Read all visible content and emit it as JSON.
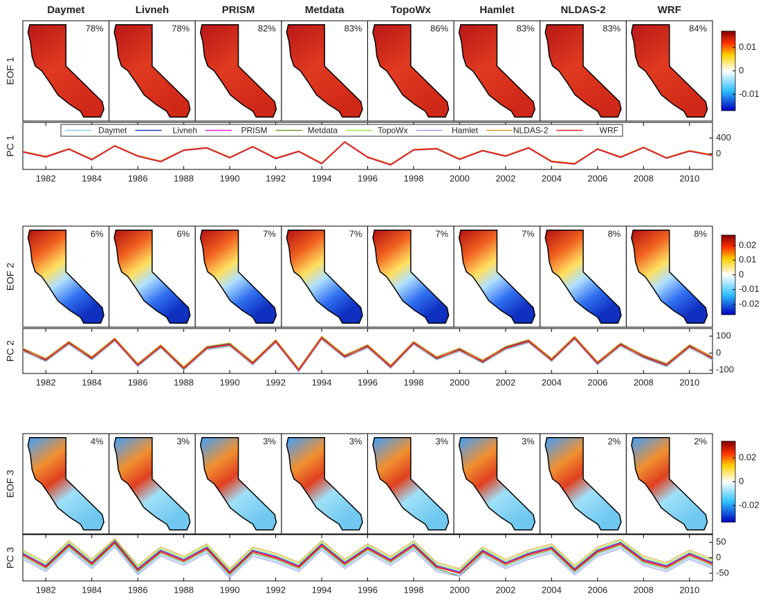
{
  "chart_data": [
    {
      "type": "map",
      "categories": [
        "Daymet",
        "Livneh",
        "PRISM",
        "Metdata",
        "TopoWx",
        "Hamlet",
        "NLDAS-2",
        "WRF"
      ],
      "ylabel": "EOF 1",
      "values": [
        78,
        78,
        82,
        83,
        86,
        83,
        83,
        84
      ],
      "value_labels": [
        "78%",
        "78%",
        "82%",
        "83%",
        "86%",
        "83%",
        "83%",
        "84%"
      ],
      "clim": [
        -0.017,
        0.017
      ],
      "cticks": [
        -0.01,
        0,
        0.01
      ]
    },
    {
      "type": "line",
      "ylabel": "PC 1",
      "legend": "top",
      "x": [
        1981,
        1982,
        1983,
        1984,
        1985,
        1986,
        1987,
        1988,
        1989,
        1990,
        1991,
        1992,
        1993,
        1994,
        1995,
        1996,
        1997,
        1998,
        1999,
        2000,
        2001,
        2002,
        2003,
        2004,
        2005,
        2006,
        2007,
        2008,
        2009,
        2010,
        2011
      ],
      "xlim": [
        1981,
        2011
      ],
      "xticks": [
        1982,
        1984,
        1986,
        1988,
        1990,
        1992,
        1994,
        1996,
        1998,
        2000,
        2002,
        2004,
        2006,
        2008,
        2010
      ],
      "ylim": [
        -400,
        800
      ],
      "yticks": [
        0,
        400
      ],
      "series": [
        {
          "name": "Daymet",
          "color": "#87ceeb",
          "values": [
            40,
            -70,
            110,
            -140,
            190,
            -50,
            -190,
            80,
            140,
            -90,
            170,
            -110,
            50,
            -240,
            290,
            -80,
            -270,
            90,
            120,
            -130,
            70,
            -50,
            140,
            -190,
            -250,
            110,
            -80,
            150,
            -100,
            60,
            -30
          ]
        },
        {
          "name": "Livneh",
          "color": "#1f3fbf",
          "values": [
            55,
            -85,
            125,
            -160,
            205,
            -65,
            -210,
            95,
            155,
            -105,
            185,
            -125,
            65,
            -255,
            305,
            -95,
            -285,
            105,
            135,
            -145,
            85,
            -65,
            155,
            -205,
            -265,
            125,
            -95,
            165,
            -115,
            75,
            -45
          ]
        },
        {
          "name": "PRISM",
          "color": "#e020e0",
          "values": [
            45,
            -75,
            115,
            -145,
            195,
            -55,
            -195,
            85,
            145,
            -95,
            175,
            -115,
            55,
            -245,
            295,
            -85,
            -275,
            95,
            125,
            -135,
            75,
            -55,
            145,
            -195,
            -255,
            115,
            -85,
            155,
            -105,
            65,
            -35
          ]
        },
        {
          "name": "Metdata",
          "color": "#6b9b30",
          "values": [
            60,
            -70,
            130,
            -140,
            210,
            -50,
            -190,
            100,
            160,
            -90,
            190,
            -110,
            70,
            -240,
            310,
            -80,
            -270,
            110,
            140,
            -130,
            90,
            -50,
            160,
            -190,
            -250,
            130,
            -80,
            170,
            -100,
            80,
            -30
          ]
        },
        {
          "name": "TopoWx",
          "color": "#90ee40",
          "values": [
            50,
            -90,
            120,
            -160,
            200,
            -70,
            -210,
            90,
            150,
            -110,
            180,
            -130,
            60,
            -260,
            300,
            -100,
            -290,
            100,
            130,
            -150,
            80,
            -70,
            150,
            -210,
            -270,
            120,
            -100,
            160,
            -120,
            70,
            -50
          ]
        },
        {
          "name": "Hamlet",
          "color": "#9f9fef",
          "values": [
            35,
            -95,
            105,
            -165,
            185,
            -75,
            -215,
            75,
            135,
            -115,
            165,
            -135,
            45,
            -265,
            285,
            -105,
            -295,
            85,
            115,
            -155,
            65,
            -75,
            135,
            -215,
            -275,
            105,
            -105,
            145,
            -125,
            55,
            -55
          ]
        },
        {
          "name": "NLDAS-2",
          "color": "#e0a030",
          "values": [
            65,
            -60,
            135,
            -130,
            215,
            -40,
            -180,
            105,
            165,
            -80,
            195,
            -100,
            75,
            -230,
            315,
            -70,
            -260,
            115,
            145,
            -120,
            95,
            -40,
            165,
            -180,
            -240,
            135,
            -70,
            175,
            -90,
            85,
            -20
          ]
        },
        {
          "name": "WRF",
          "color": "#e02020",
          "values": [
            50,
            -80,
            120,
            -150,
            200,
            -60,
            -200,
            90,
            150,
            -100,
            180,
            -120,
            60,
            -250,
            300,
            -90,
            -280,
            100,
            130,
            -140,
            80,
            -60,
            150,
            -200,
            -260,
            120,
            -90,
            160,
            -110,
            70,
            -40
          ]
        }
      ]
    },
    {
      "type": "map",
      "ylabel": "EOF 2",
      "values": [
        6,
        6,
        7,
        7,
        7,
        7,
        8,
        8
      ],
      "value_labels": [
        "6%",
        "6%",
        "7%",
        "7%",
        "7%",
        "7%",
        "8%",
        "8%"
      ],
      "clim": [
        -0.027,
        0.027
      ],
      "cticks": [
        -0.02,
        -0.01,
        0,
        0.01,
        0.02
      ]
    },
    {
      "type": "line",
      "ylabel": "PC 2",
      "x": [
        1981,
        1982,
        1983,
        1984,
        1985,
        1986,
        1987,
        1988,
        1989,
        1990,
        1991,
        1992,
        1993,
        1994,
        1995,
        1996,
        1997,
        1998,
        1999,
        2000,
        2001,
        2002,
        2003,
        2004,
        2005,
        2006,
        2007,
        2008,
        2009,
        2010,
        2011
      ],
      "xlim": [
        1981,
        2011
      ],
      "xticks": [
        1982,
        1984,
        1986,
        1988,
        1990,
        1992,
        1994,
        1996,
        1998,
        2000,
        2002,
        2004,
        2006,
        2008,
        2010
      ],
      "ylim": [
        -120,
        145
      ],
      "yticks": [
        -100,
        0,
        100
      ],
      "series": [
        {
          "color": "#87ceeb",
          "values": [
            15,
            -35,
            55,
            -25,
            75,
            -65,
            35,
            -85,
            25,
            45,
            -55,
            65,
            -95,
            85,
            -15,
            35,
            -75,
            55,
            -25,
            15,
            -45,
            25,
            65,
            -35,
            85,
            -55,
            45,
            -15,
            -65,
            35,
            -25
          ]
        },
        {
          "color": "#1f3fbf",
          "values": [
            25,
            -45,
            65,
            -35,
            85,
            -75,
            45,
            -95,
            35,
            55,
            -65,
            75,
            -105,
            95,
            -25,
            45,
            -85,
            65,
            -35,
            25,
            -55,
            35,
            75,
            -45,
            95,
            -65,
            55,
            -25,
            -75,
            45,
            -35
          ]
        },
        {
          "color": "#e020e0",
          "values": [
            18,
            -38,
            58,
            -28,
            78,
            -68,
            38,
            -88,
            28,
            48,
            -58,
            68,
            -98,
            88,
            -18,
            38,
            -78,
            58,
            -28,
            18,
            -48,
            28,
            68,
            -38,
            88,
            -58,
            48,
            -18,
            -68,
            38,
            -28
          ]
        },
        {
          "color": "#6b9b30",
          "values": [
            28,
            -32,
            68,
            -22,
            88,
            -62,
            48,
            -82,
            38,
            58,
            -52,
            78,
            -92,
            98,
            -12,
            48,
            -72,
            68,
            -22,
            28,
            -42,
            38,
            78,
            -32,
            98,
            -52,
            58,
            -12,
            -62,
            48,
            -22
          ]
        },
        {
          "color": "#90ee40",
          "values": [
            12,
            -48,
            52,
            -38,
            72,
            -78,
            32,
            -98,
            22,
            42,
            -68,
            62,
            -108,
            82,
            -28,
            32,
            -88,
            52,
            -38,
            12,
            -58,
            22,
            62,
            -48,
            82,
            -68,
            42,
            -28,
            -78,
            32,
            -38
          ]
        },
        {
          "color": "#9f9fef",
          "values": [
            10,
            -50,
            50,
            -40,
            70,
            -80,
            30,
            -100,
            20,
            40,
            -70,
            60,
            -110,
            80,
            -30,
            30,
            -90,
            50,
            -40,
            10,
            -60,
            20,
            60,
            -50,
            80,
            -70,
            40,
            -30,
            -80,
            30,
            -40
          ]
        },
        {
          "color": "#e0a030",
          "values": [
            30,
            -30,
            70,
            -20,
            90,
            -60,
            50,
            -80,
            40,
            60,
            -50,
            80,
            -90,
            100,
            -10,
            50,
            -70,
            70,
            -20,
            30,
            -40,
            40,
            80,
            -30,
            100,
            -50,
            60,
            -10,
            -60,
            50,
            -20
          ]
        },
        {
          "color": "#e02020",
          "values": [
            20,
            -40,
            60,
            -30,
            80,
            -70,
            40,
            -90,
            30,
            50,
            -60,
            70,
            -100,
            90,
            -20,
            40,
            -80,
            60,
            -30,
            20,
            -50,
            30,
            70,
            -40,
            90,
            -60,
            50,
            -20,
            -70,
            40,
            -30
          ]
        }
      ]
    },
    {
      "type": "map",
      "ylabel": "EOF 3",
      "values": [
        4,
        3,
        3,
        3,
        3,
        3,
        2,
        2
      ],
      "value_labels": [
        "4%",
        "3%",
        "3%",
        "3%",
        "3%",
        "3%",
        "2%",
        "2%"
      ],
      "clim": [
        -0.034,
        0.034
      ],
      "cticks": [
        -0.02,
        0,
        0.02
      ]
    },
    {
      "type": "line",
      "ylabel": "PC 3",
      "x": [
        1981,
        1982,
        1983,
        1984,
        1985,
        1986,
        1987,
        1988,
        1989,
        1990,
        1991,
        1992,
        1993,
        1994,
        1995,
        1996,
        1997,
        1998,
        1999,
        2000,
        2001,
        2002,
        2003,
        2004,
        2005,
        2006,
        2007,
        2008,
        2009,
        2010,
        2011
      ],
      "xlim": [
        1981,
        2011
      ],
      "xticks": [
        1982,
        1984,
        1986,
        1988,
        1990,
        1992,
        1994,
        1996,
        1998,
        2000,
        2002,
        2004,
        2006,
        2008,
        2010
      ],
      "ylim": [
        -75,
        75
      ],
      "yticks": [
        -50,
        0,
        50
      ],
      "series": [
        {
          "color": "#87ceeb",
          "values": [
            0,
            -40,
            30,
            -30,
            40,
            -50,
            10,
            -20,
            20,
            -60,
            10,
            -10,
            -40,
            30,
            -30,
            20,
            -20,
            30,
            -40,
            -55,
            10,
            -30,
            0,
            20,
            -50,
            10,
            35,
            -20,
            -40,
            0,
            -30
          ]
        },
        {
          "color": "#1f3fbf",
          "values": [
            15,
            -25,
            45,
            -15,
            55,
            -35,
            25,
            -5,
            35,
            -45,
            25,
            5,
            -25,
            45,
            -15,
            35,
            -5,
            45,
            -25,
            -45,
            25,
            -15,
            15,
            35,
            -35,
            25,
            50,
            -5,
            -25,
            15,
            -15
          ]
        },
        {
          "color": "#e020e0",
          "values": [
            12,
            -28,
            42,
            -18,
            52,
            -38,
            22,
            -8,
            32,
            -48,
            22,
            2,
            -28,
            42,
            -18,
            32,
            -8,
            42,
            -28,
            -48,
            22,
            -18,
            12,
            32,
            -38,
            22,
            47,
            -8,
            -28,
            12,
            -18
          ]
        },
        {
          "color": "#6b9b30",
          "values": [
            5,
            -35,
            35,
            -25,
            45,
            -45,
            15,
            -15,
            25,
            -55,
            15,
            -5,
            -35,
            35,
            -25,
            25,
            -15,
            35,
            -35,
            -60,
            15,
            -25,
            5,
            25,
            -45,
            15,
            40,
            -15,
            -35,
            5,
            -25
          ]
        },
        {
          "color": "#90ee40",
          "values": [
            20,
            -20,
            50,
            -10,
            60,
            -30,
            30,
            0,
            40,
            -40,
            30,
            10,
            -20,
            50,
            -10,
            40,
            0,
            50,
            -20,
            -40,
            30,
            -10,
            20,
            40,
            -30,
            30,
            55,
            0,
            -20,
            20,
            -10
          ]
        },
        {
          "color": "#9f9fef",
          "values": [
            -5,
            -45,
            25,
            -35,
            35,
            -55,
            5,
            -25,
            15,
            -65,
            5,
            -15,
            -45,
            25,
            -35,
            15,
            -25,
            25,
            -45,
            -60,
            5,
            -35,
            -5,
            15,
            -55,
            5,
            30,
            -25,
            -45,
            -5,
            -35
          ]
        },
        {
          "color": "#e0a030",
          "values": [
            25,
            -15,
            55,
            -5,
            62,
            -25,
            35,
            5,
            45,
            -35,
            35,
            15,
            -15,
            55,
            -5,
            45,
            5,
            55,
            -15,
            -35,
            35,
            -5,
            25,
            45,
            -25,
            35,
            60,
            5,
            -15,
            25,
            -5
          ]
        },
        {
          "color": "#e02020",
          "values": [
            10,
            -30,
            40,
            -20,
            50,
            -40,
            20,
            -10,
            30,
            -50,
            20,
            0,
            -30,
            40,
            -20,
            30,
            -10,
            40,
            -30,
            -50,
            20,
            -20,
            10,
            30,
            -40,
            20,
            45,
            -10,
            -30,
            10,
            -20
          ]
        }
      ]
    }
  ]
}
